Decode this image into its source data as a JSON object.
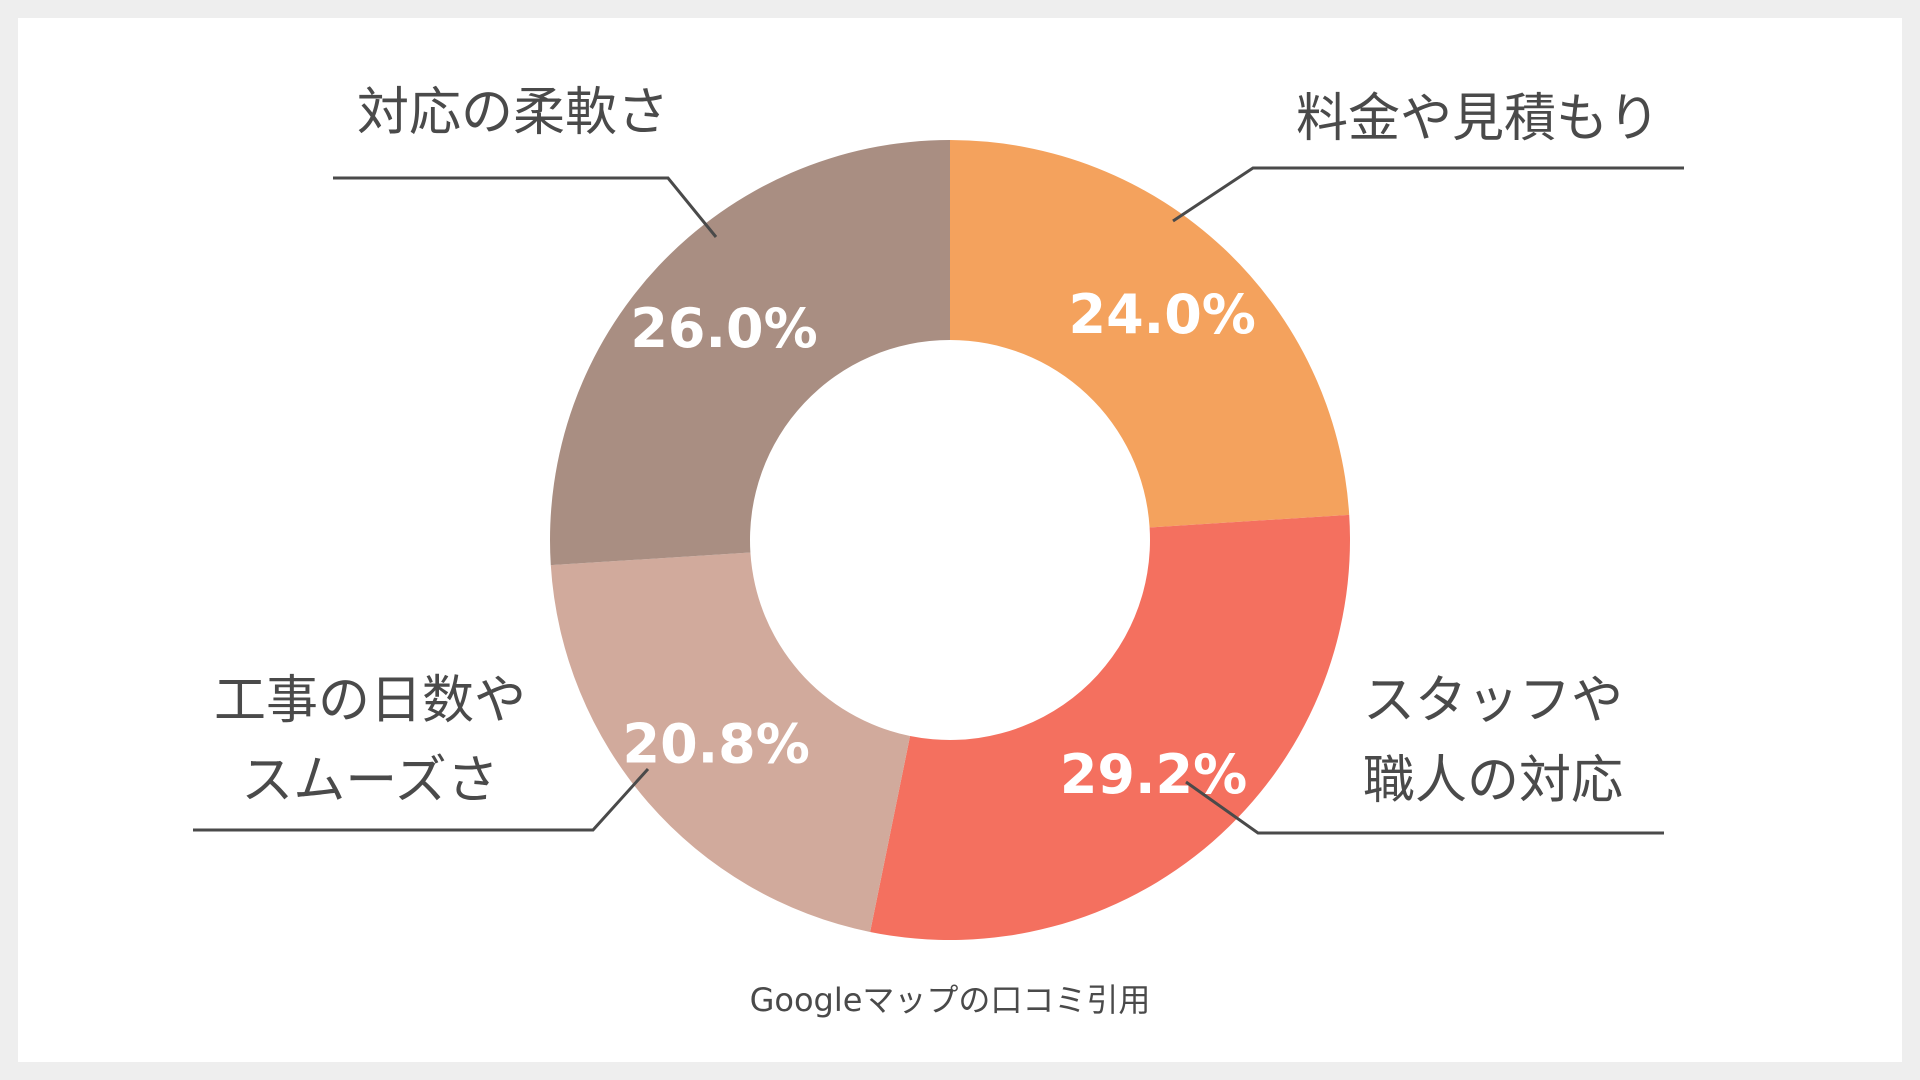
{
  "chart_data": {
    "type": "pie",
    "variant": "donut",
    "start": "top",
    "direction": "clockwise",
    "slices": [
      {
        "label_lines": [
          "料金や見積もり"
        ],
        "value": 24.0,
        "value_label": "24.0%",
        "color": "#F4A25D"
      },
      {
        "label_lines": [
          "スタッフや",
          "職人の対応"
        ],
        "value": 29.2,
        "value_label": "29.2%",
        "color": "#F4705F"
      },
      {
        "label_lines": [
          "工事の日数や",
          "スムーズさ"
        ],
        "value": 20.8,
        "value_label": "20.8%",
        "color": "#D1AA9C"
      },
      {
        "label_lines": [
          "対応の柔軟さ"
        ],
        "value": 26.0,
        "value_label": "26.0%",
        "color": "#A98E82"
      }
    ],
    "caption": "Googleマップの口コミ引用"
  }
}
